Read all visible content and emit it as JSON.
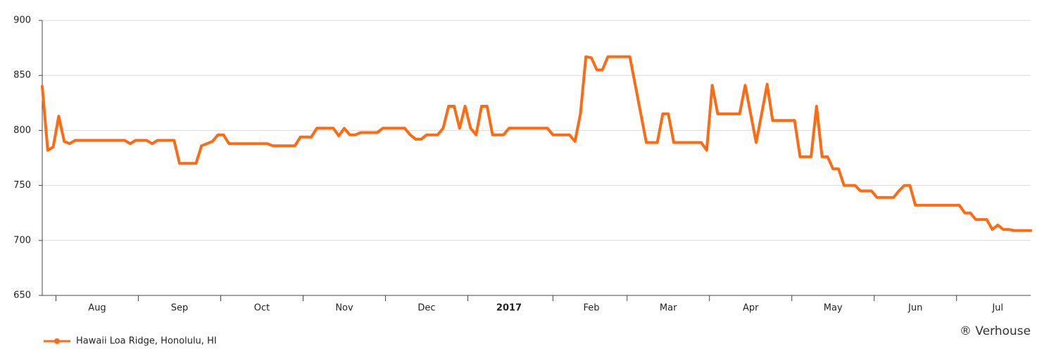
{
  "chart_data": {
    "type": "line",
    "categories": [
      null,
      null,
      null,
      null,
      null,
      null,
      null,
      null,
      null,
      null,
      "Aug",
      null,
      null,
      null,
      null,
      null,
      null,
      null,
      null,
      null,
      null,
      null,
      null,
      null,
      null,
      "Sep",
      null,
      null,
      null,
      null,
      null,
      null,
      null,
      null,
      null,
      null,
      null,
      null,
      null,
      null,
      "Oct",
      null,
      null,
      null,
      null,
      null,
      null,
      null,
      null,
      null,
      null,
      null,
      null,
      null,
      null,
      "Nov",
      null,
      null,
      null,
      null,
      null,
      null,
      null,
      null,
      null,
      null,
      null,
      null,
      null,
      null,
      "Dec",
      null,
      null,
      null,
      null,
      null,
      null,
      null,
      null,
      null,
      null,
      null,
      null,
      null,
      null,
      "2017",
      null,
      null,
      null,
      null,
      null,
      null,
      null,
      null,
      null,
      null,
      null,
      null,
      null,
      null,
      "Feb",
      null,
      null,
      null,
      null,
      null,
      null,
      null,
      null,
      null,
      null,
      null,
      null,
      null,
      "Mar",
      null,
      null,
      null,
      null,
      null,
      null,
      null,
      null,
      null,
      null,
      null,
      null,
      null,
      null,
      "Apr",
      null,
      null,
      null,
      null,
      null,
      null,
      null,
      null,
      null,
      null,
      null,
      null,
      null,
      null,
      "May",
      null,
      null,
      null,
      null,
      null,
      null,
      null,
      null,
      null,
      null,
      null,
      null,
      null,
      null,
      "Jun",
      null,
      null,
      null,
      null,
      null,
      null,
      null,
      null,
      null,
      null,
      null,
      null,
      null,
      null,
      "Jul",
      null,
      null,
      null,
      null,
      null,
      null
    ],
    "series": [
      {
        "name": "Hawaii Loa Ridge, Honolulu, HI",
        "color": "#ff6a13",
        "values": [
          840,
          782,
          785,
          813,
          790,
          788,
          791,
          791,
          791,
          791,
          791,
          791,
          791,
          791,
          791,
          791,
          788,
          791,
          791,
          791,
          788,
          791,
          791,
          791,
          791,
          770,
          770,
          770,
          770,
          786,
          788,
          790,
          796,
          796,
          788,
          788,
          788,
          788,
          788,
          788,
          788,
          788,
          786,
          786,
          786,
          786,
          786,
          794,
          794,
          794,
          802,
          802,
          802,
          802,
          795,
          802,
          796,
          796,
          798,
          798,
          798,
          798,
          802,
          802,
          802,
          802,
          802,
          796,
          792,
          792,
          796,
          796,
          796,
          802,
          822,
          822,
          802,
          822,
          802,
          796,
          822,
          822,
          796,
          796,
          796,
          802,
          802,
          802,
          802,
          802,
          802,
          802,
          802,
          796,
          796,
          796,
          796,
          790,
          815,
          867,
          866,
          855,
          855,
          867,
          867,
          867,
          867,
          867,
          841,
          815,
          789,
          789,
          789,
          815,
          815,
          789,
          789,
          789,
          789,
          789,
          789,
          782,
          841,
          815,
          815,
          815,
          815,
          815,
          841,
          815,
          789,
          815,
          842,
          809,
          809,
          809,
          809,
          809,
          776,
          776,
          776,
          822,
          776,
          776,
          765,
          765,
          750,
          750,
          750,
          745,
          745,
          745,
          739,
          739,
          739,
          739,
          745,
          750,
          750,
          732,
          732,
          732,
          732,
          732,
          732,
          732,
          732,
          732,
          725,
          725,
          719,
          719,
          719,
          710,
          714,
          710,
          710,
          709,
          709,
          709,
          709
        ]
      }
    ],
    "ylim": [
      650,
      900
    ],
    "yticks": [
      650,
      700,
      750,
      800,
      850,
      900
    ],
    "grid": true,
    "legend": "bottom-left",
    "credit": "® Verhouse"
  }
}
